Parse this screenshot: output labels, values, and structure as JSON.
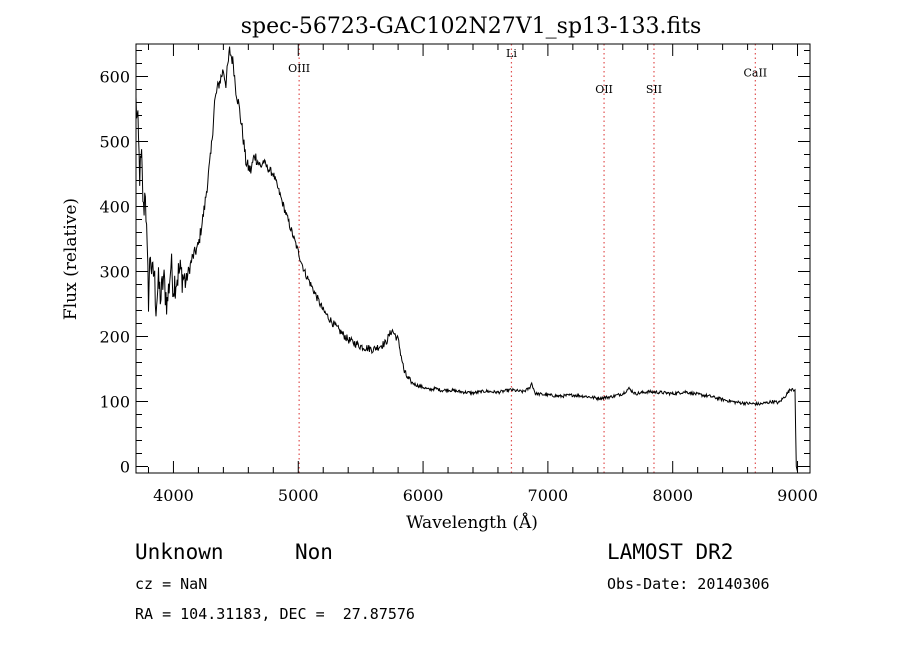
{
  "chart_data": {
    "type": "line",
    "title": "spec-56723-GAC102N27V1_sp13-133.fits",
    "xlabel": "Wavelength (Å)",
    "ylabel": "Flux (relative)",
    "xlim": [
      3700,
      9100
    ],
    "ylim": [
      -10,
      650
    ],
    "x_ticks": [
      4000,
      5000,
      6000,
      7000,
      8000,
      9000
    ],
    "y_ticks": [
      0,
      100,
      200,
      300,
      400,
      500,
      600
    ],
    "x_minor_step": 200,
    "y_minor_step": 20,
    "grid": false,
    "line_color": "#000000",
    "series": [
      {
        "x": [
          3700,
          3715,
          3730,
          3745,
          3760,
          3775,
          3790,
          3800,
          3815,
          3830,
          3845,
          3860,
          3880,
          3900,
          3920,
          3950,
          3980,
          4000,
          4050,
          4100,
          4150,
          4200,
          4250,
          4300,
          4330,
          4350,
          4400,
          4420,
          4450,
          4480,
          4500,
          4520,
          4550,
          4580,
          4600,
          4620,
          4650,
          4700,
          4720,
          4750,
          4800,
          4850,
          4900,
          4950,
          5000,
          5050,
          5100,
          5150,
          5200,
          5300,
          5400,
          5500,
          5600,
          5700,
          5750,
          5800,
          5820,
          5850,
          5880,
          5900,
          5950,
          6000,
          6050,
          6100,
          6150,
          6200,
          6300,
          6400,
          6500,
          6600,
          6700,
          6800,
          6850,
          6870,
          6900,
          7000,
          7100,
          7200,
          7300,
          7400,
          7500,
          7600,
          7650,
          7700,
          7800,
          7900,
          8000,
          8100,
          8200,
          8300,
          8400,
          8500,
          8600,
          8700,
          8800,
          8850,
          8900,
          8940,
          8960,
          8970,
          8980,
          8990,
          9000
        ],
        "y": [
          560,
          520,
          450,
          470,
          390,
          430,
          320,
          260,
          330,
          290,
          300,
          250,
          280,
          260,
          290,
          250,
          310,
          280,
          300,
          285,
          320,
          340,
          400,
          480,
          560,
          580,
          610,
          590,
          640,
          620,
          580,
          560,
          520,
          470,
          460,
          455,
          480,
          460,
          470,
          460,
          450,
          420,
          390,
          360,
          330,
          300,
          280,
          260,
          240,
          215,
          195,
          185,
          180,
          190,
          210,
          195,
          175,
          145,
          135,
          130,
          125,
          122,
          118,
          120,
          117,
          118,
          115,
          113,
          116,
          114,
          118,
          115,
          120,
          128,
          112,
          110,
          108,
          110,
          108,
          105,
          107,
          112,
          120,
          112,
          115,
          114,
          112,
          115,
          111,
          108,
          103,
          99,
          97,
          96,
          100,
          98,
          108,
          118,
          120,
          116,
          118,
          0,
          -8
        ]
      }
    ],
    "annotations": [
      {
        "label": "OIII",
        "x": 5007,
        "label_y": 607
      },
      {
        "label": "Li",
        "x": 6708,
        "label_y": 630
      },
      {
        "label": "OII",
        "x": 7450,
        "label_y": 575
      },
      {
        "label": "SII",
        "x": 7850,
        "label_y": 575
      },
      {
        "label": "CaII",
        "x": 8662,
        "label_y": 600
      }
    ],
    "annotation_color": "#e05050"
  },
  "info": {
    "class": "Unknown",
    "subclass": "Non",
    "survey": "LAMOST DR2",
    "cz": "cz = NaN",
    "obs_date": "Obs-Date: 20140306",
    "coords": "RA = 104.31183, DEC =  27.87576"
  }
}
